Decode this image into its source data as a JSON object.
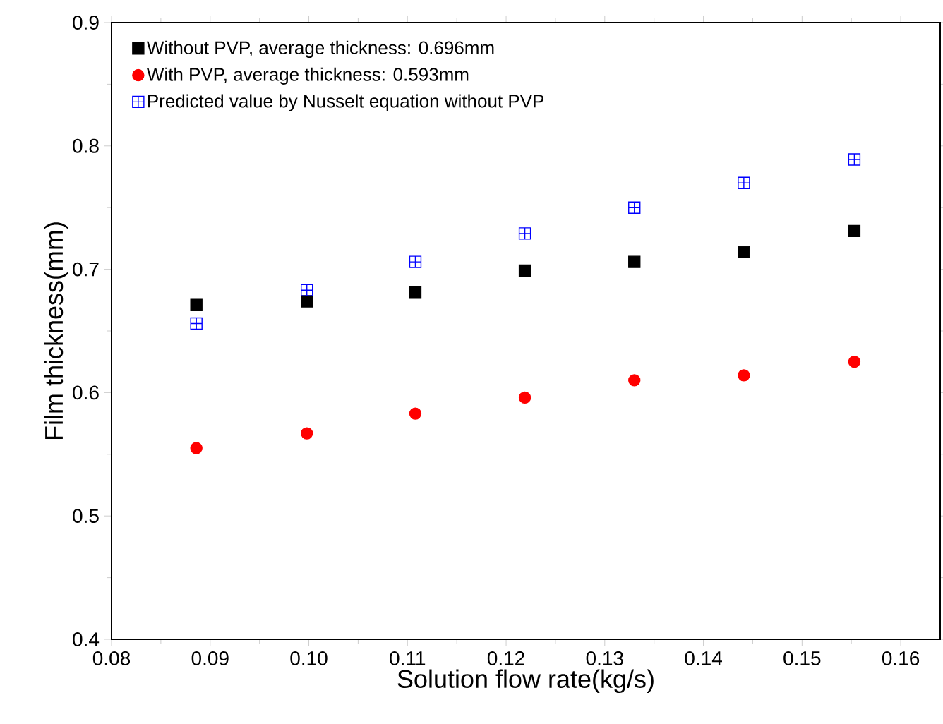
{
  "chart_data": {
    "type": "scatter",
    "xlabel": "Solution flow rate(kg/s)",
    "ylabel": "Film thickness(mm)",
    "x": [
      0.0886,
      0.0998,
      0.1108,
      0.1219,
      0.133,
      0.1441,
      0.1553
    ],
    "series": [
      {
        "name": "Without PVP, average thickness: 0.696mm",
        "color": "#000000",
        "marker": "square",
        "values": [
          0.671,
          0.674,
          0.681,
          0.699,
          0.706,
          0.714,
          0.731
        ]
      },
      {
        "name": "With PVP,      average thickness: 0.593mm",
        "color": "#ff0000",
        "marker": "circle",
        "values": [
          0.555,
          0.567,
          0.583,
          0.596,
          0.61,
          0.614,
          0.625
        ]
      },
      {
        "name": "Predicted value by Nusselt equation without PVP",
        "color": "#0000ff",
        "marker": "cross",
        "values": [
          0.656,
          0.683,
          0.706,
          0.729,
          0.75,
          0.77,
          0.789
        ]
      }
    ],
    "xlim": [
      0.08,
      0.164
    ],
    "xticks": [
      {
        "value": 0.08,
        "label": "0.08"
      },
      {
        "value": 0.09,
        "label": "0.09"
      },
      {
        "value": 0.1,
        "label": "0.10"
      },
      {
        "value": 0.11,
        "label": "0.11"
      },
      {
        "value": 0.12,
        "label": "0.12"
      },
      {
        "value": 0.13,
        "label": "0.13"
      },
      {
        "value": 0.14,
        "label": "0.14"
      },
      {
        "value": 0.15,
        "label": "0.15"
      },
      {
        "value": 0.16,
        "label": "0.16"
      }
    ],
    "ylim": [
      0.4,
      0.9
    ],
    "yticks": [
      0.4,
      0.5,
      0.6,
      0.7,
      0.8,
      0.9
    ],
    "grid": false,
    "legend": "top left"
  }
}
